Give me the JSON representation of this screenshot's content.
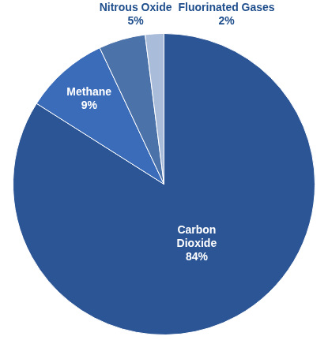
{
  "chart_data": {
    "type": "pie",
    "categories": [
      "Carbon Dioxide",
      "Methane",
      "Nitrous Oxide",
      "Fluorinated Gases"
    ],
    "values": [
      84,
      9,
      5,
      2
    ],
    "value_labels": [
      "84%",
      "9%",
      "5%",
      "2%"
    ],
    "colors": [
      "#2c5595",
      "#3b6cba",
      "#4c72aa",
      "#a9bcda"
    ],
    "data_labels": true
  }
}
